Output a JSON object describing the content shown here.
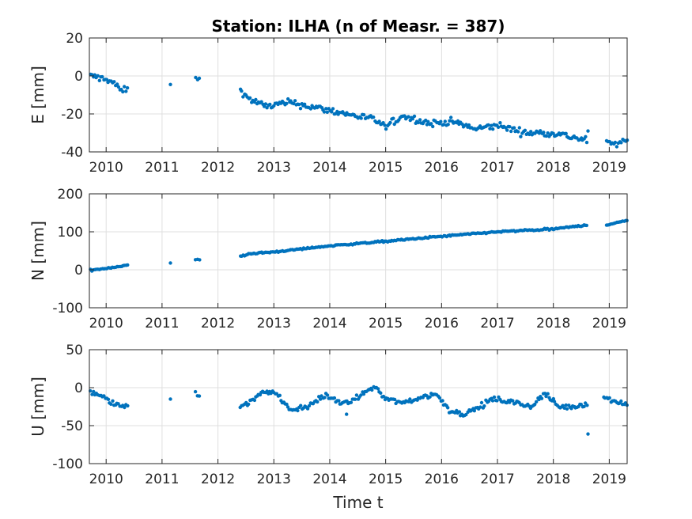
{
  "title": "Station: ILHA (n of Measr. = 387)",
  "xlabel": "Time t",
  "colors": {
    "points": "#0072bd",
    "grid": "#dfdfdf",
    "axis": "#262626"
  },
  "chart_data": [
    {
      "type": "scatter",
      "ylabel": "E [mm]",
      "xlim": [
        2009.7,
        2019.32
      ],
      "ylim": [
        -40,
        20
      ],
      "xticks": [
        2010,
        2011,
        2012,
        2013,
        2014,
        2015,
        2016,
        2017,
        2018,
        2019
      ],
      "yticks": [
        20,
        0,
        -20,
        -40
      ],
      "grid": true,
      "segments": [
        {
          "x": [
            2009.72,
            2009.88,
            2010.0,
            2010.15,
            2010.28,
            2010.38
          ],
          "y": [
            0,
            -1,
            -1.5,
            -4,
            -8,
            -7
          ],
          "noise": 1.2
        },
        {
          "x": [
            2011.15
          ],
          "y": [
            -4.5
          ],
          "noise": 0
        },
        {
          "x": [
            2011.6,
            2011.67
          ],
          "y": [
            -0.5,
            -2
          ],
          "noise": 0.8
        },
        {
          "x": [
            2012.4,
            2012.55,
            2012.85,
            2013.3,
            2013.8,
            2014.3,
            2014.8,
            2015.0,
            2015.3,
            2015.8,
            2016.2,
            2016.6,
            2017.0,
            2017.5,
            2018.0,
            2018.6
          ],
          "y": [
            -7,
            -12,
            -16,
            -14,
            -17,
            -20,
            -23,
            -27,
            -21,
            -25,
            -24,
            -28,
            -26,
            -30,
            -30,
            -34
          ],
          "noise": 1.3
        },
        {
          "x": [
            2018.95,
            2019.1,
            2019.32
          ],
          "y": [
            -35,
            -36,
            -34
          ],
          "noise": 1.0
        }
      ],
      "outliers": [
        {
          "x": 2018.62,
          "y": -29
        }
      ]
    },
    {
      "type": "scatter",
      "ylabel": "N [mm]",
      "xlim": [
        2009.7,
        2019.32
      ],
      "ylim": [
        -100,
        200
      ],
      "xticks": [
        2010,
        2011,
        2012,
        2013,
        2014,
        2015,
        2016,
        2017,
        2018,
        2019
      ],
      "yticks": [
        200,
        100,
        0,
        -100
      ],
      "grid": true,
      "segments": [
        {
          "x": [
            2009.72,
            2010.0,
            2010.38
          ],
          "y": [
            -1,
            4,
            12
          ],
          "noise": 1.5
        },
        {
          "x": [
            2011.15
          ],
          "y": [
            18
          ],
          "noise": 0
        },
        {
          "x": [
            2011.6,
            2011.67
          ],
          "y": [
            26,
            27
          ],
          "noise": 1.0
        },
        {
          "x": [
            2012.4,
            2012.55,
            2013.0,
            2014.0,
            2015.0,
            2016.0,
            2017.0,
            2018.0,
            2018.6
          ],
          "y": [
            35,
            42,
            47,
            63,
            75,
            88,
            100,
            107,
            118
          ],
          "noise": 1.5
        },
        {
          "x": [
            2018.95,
            2019.32
          ],
          "y": [
            118,
            130
          ],
          "noise": 1.2
        }
      ],
      "outliers": []
    },
    {
      "type": "scatter",
      "ylabel": "U [mm]",
      "xlim": [
        2009.7,
        2019.32
      ],
      "ylim": [
        -100,
        50
      ],
      "xticks": [
        2010,
        2011,
        2012,
        2013,
        2014,
        2015,
        2016,
        2017,
        2018,
        2019
      ],
      "yticks": [
        50,
        0,
        -50,
        -100
      ],
      "grid": true,
      "segments": [
        {
          "x": [
            2009.72,
            2009.9,
            2010.1,
            2010.25,
            2010.38
          ],
          "y": [
            -5,
            -10,
            -20,
            -25,
            -22
          ],
          "noise": 2.5
        },
        {
          "x": [
            2011.15
          ],
          "y": [
            -15
          ],
          "noise": 0
        },
        {
          "x": [
            2011.6,
            2011.67
          ],
          "y": [
            -5,
            -12
          ],
          "noise": 2.0
        },
        {
          "x": [
            2012.4,
            2012.6,
            2012.8,
            2013.0,
            2013.3,
            2013.6,
            2013.9,
            2014.3,
            2014.6,
            2014.8,
            2015.0,
            2015.3,
            2015.7,
            2015.9,
            2016.15,
            2016.4,
            2016.7,
            2016.9,
            2017.2,
            2017.6,
            2017.85,
            2018.1,
            2018.4,
            2018.6
          ],
          "y": [
            -25,
            -18,
            -5,
            -5,
            -30,
            -25,
            -10,
            -22,
            -8,
            2,
            -15,
            -20,
            -12,
            -8,
            -30,
            -35,
            -25,
            -15,
            -18,
            -25,
            -8,
            -25,
            -25,
            -20
          ],
          "noise": 2.5
        },
        {
          "x": [
            2018.9,
            2019.1,
            2019.32
          ],
          "y": [
            -12,
            -18,
            -22
          ],
          "noise": 2.0
        }
      ],
      "outliers": [
        {
          "x": 2018.62,
          "y": -61
        },
        {
          "x": 2014.3,
          "y": -35
        }
      ]
    }
  ]
}
